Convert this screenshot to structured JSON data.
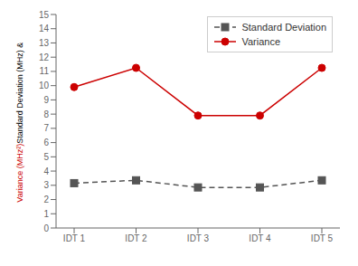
{
  "chart_data": {
    "type": "line",
    "categories": [
      "IDT 1",
      "IDT 2",
      "IDT 3",
      "IDT 4",
      "IDT 5"
    ],
    "series": [
      {
        "name": "Standard Deviation",
        "color": "#555555",
        "values": [
          3.15,
          3.35,
          2.85,
          2.85,
          3.35
        ],
        "marker": "square",
        "line_style": "dashed"
      },
      {
        "name": "Variance",
        "color": "#cc0000",
        "values": [
          9.9,
          11.25,
          7.9,
          7.9,
          11.25
        ],
        "marker": "circle",
        "line_style": "solid"
      }
    ],
    "ylabel": [
      {
        "text": "Variance (MHz²)",
        "color": "#cc0000"
      },
      {
        "text": "Standard Deviation (MHz) & ",
        "color": "#000000"
      }
    ],
    "ylim": [
      0,
      15
    ],
    "yticks": [
      0,
      1,
      2,
      3,
      4,
      5,
      6,
      7,
      8,
      9,
      10,
      11,
      12,
      13,
      14,
      15
    ],
    "grid": false,
    "legend": "upper right"
  }
}
